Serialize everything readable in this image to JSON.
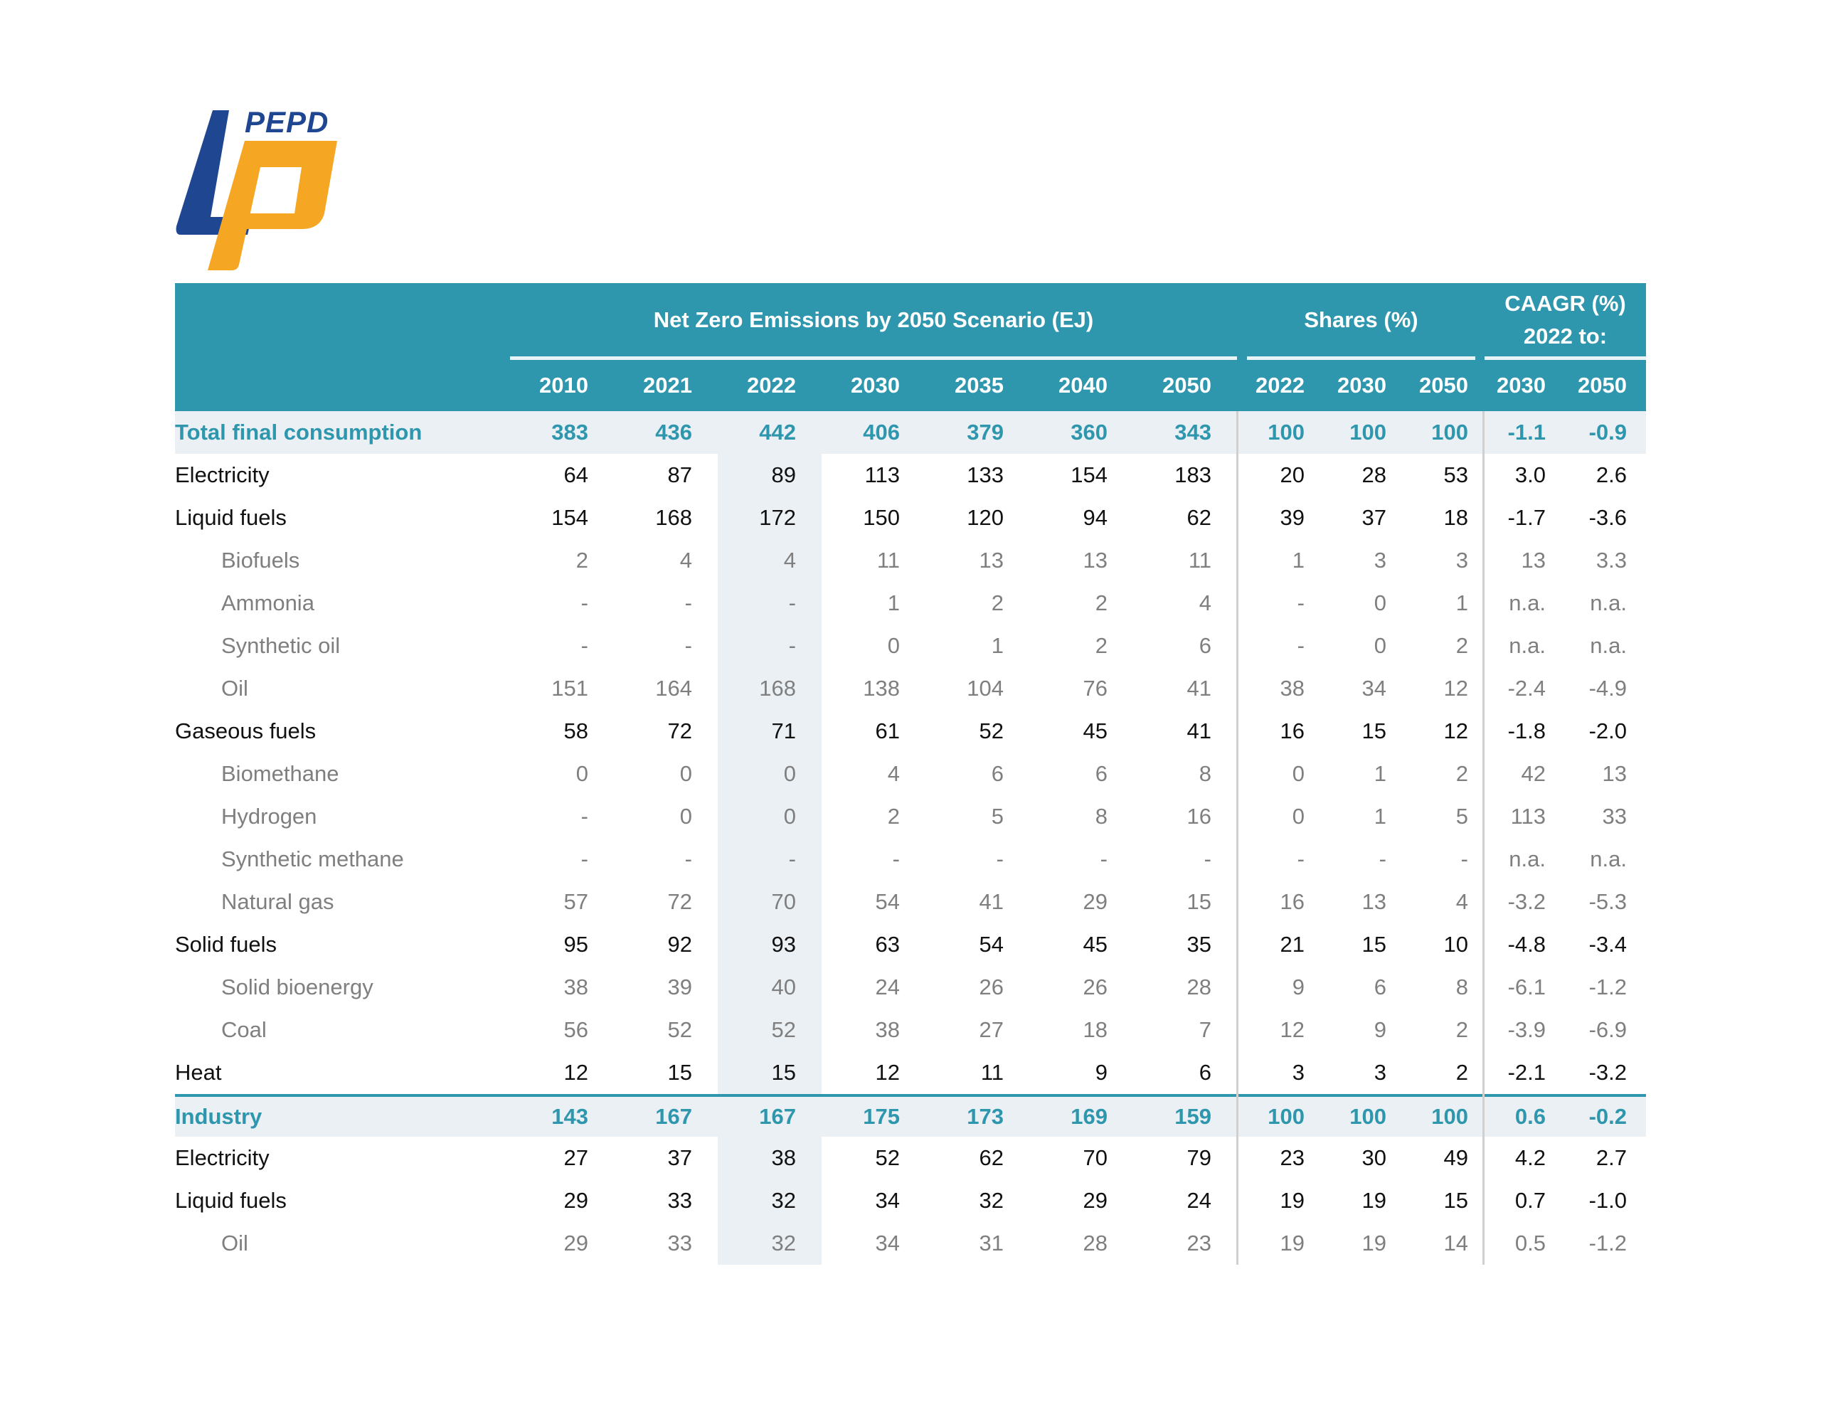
{
  "logo": {
    "text": "PEPD",
    "colors": {
      "blue": "#1f4690",
      "orange": "#f5a623"
    }
  },
  "colors": {
    "header_bg": "#2e96ad",
    "total_bg": "#eaf0f4",
    "subitem_text": "#7f7f7f"
  },
  "header": {
    "group_scenario": "Net Zero Emissions by 2050 Scenario (EJ)",
    "group_shares": "Shares (%)",
    "group_caagr_line1": "CAAGR (%)",
    "group_caagr_line2": "2022 to:",
    "scenario_years": [
      "2010",
      "2021",
      "2022",
      "2030",
      "2035",
      "2040",
      "2050"
    ],
    "share_years": [
      "2022",
      "2030",
      "2050"
    ],
    "caagr_years": [
      "2030",
      "2050"
    ]
  },
  "rows": [
    {
      "label": "Total final consumption",
      "type": "total",
      "values": [
        "383",
        "436",
        "442",
        "406",
        "379",
        "360",
        "343"
      ],
      "shares": [
        "100",
        "100",
        "100"
      ],
      "caagr": [
        "-1.1",
        "-0.9"
      ]
    },
    {
      "label": "Electricity",
      "type": "l0",
      "values": [
        "64",
        "87",
        "89",
        "113",
        "133",
        "154",
        "183"
      ],
      "shares": [
        "20",
        "28",
        "53"
      ],
      "caagr": [
        "3.0",
        "2.6"
      ]
    },
    {
      "label": "Liquid fuels",
      "type": "l0",
      "values": [
        "154",
        "168",
        "172",
        "150",
        "120",
        "94",
        "62"
      ],
      "shares": [
        "39",
        "37",
        "18"
      ],
      "caagr": [
        "-1.7",
        "-3.6"
      ]
    },
    {
      "label": "Biofuels",
      "type": "l1",
      "values": [
        "2",
        "4",
        "4",
        "11",
        "13",
        "13",
        "11"
      ],
      "shares": [
        "1",
        "3",
        "3"
      ],
      "caagr": [
        "13",
        "3.3"
      ]
    },
    {
      "label": "Ammonia",
      "type": "l1",
      "values": [
        "-",
        "-",
        "-",
        "1",
        "2",
        "2",
        "4"
      ],
      "shares": [
        "-",
        "0",
        "1"
      ],
      "caagr": [
        "n.a.",
        "n.a."
      ]
    },
    {
      "label": "Synthetic oil",
      "type": "l1",
      "values": [
        "-",
        "-",
        "-",
        "0",
        "1",
        "2",
        "6"
      ],
      "shares": [
        "-",
        "0",
        "2"
      ],
      "caagr": [
        "n.a.",
        "n.a."
      ]
    },
    {
      "label": "Oil",
      "type": "l1",
      "values": [
        "151",
        "164",
        "168",
        "138",
        "104",
        "76",
        "41"
      ],
      "shares": [
        "38",
        "34",
        "12"
      ],
      "caagr": [
        "-2.4",
        "-4.9"
      ]
    },
    {
      "label": "Gaseous fuels",
      "type": "l0",
      "values": [
        "58",
        "72",
        "71",
        "61",
        "52",
        "45",
        "41"
      ],
      "shares": [
        "16",
        "15",
        "12"
      ],
      "caagr": [
        "-1.8",
        "-2.0"
      ]
    },
    {
      "label": "Biomethane",
      "type": "l1",
      "values": [
        "0",
        "0",
        "0",
        "4",
        "6",
        "6",
        "8"
      ],
      "shares": [
        "0",
        "1",
        "2"
      ],
      "caagr": [
        "42",
        "13"
      ]
    },
    {
      "label": "Hydrogen",
      "type": "l1",
      "values": [
        "-",
        "0",
        "0",
        "2",
        "5",
        "8",
        "16"
      ],
      "shares": [
        "0",
        "1",
        "5"
      ],
      "caagr": [
        "113",
        "33"
      ]
    },
    {
      "label": "Synthetic methane",
      "type": "l1",
      "values": [
        "-",
        "-",
        "-",
        "-",
        "-",
        "-",
        "-"
      ],
      "shares": [
        "-",
        "-",
        "-"
      ],
      "caagr": [
        "n.a.",
        "n.a."
      ]
    },
    {
      "label": "Natural gas",
      "type": "l1",
      "values": [
        "57",
        "72",
        "70",
        "54",
        "41",
        "29",
        "15"
      ],
      "shares": [
        "16",
        "13",
        "4"
      ],
      "caagr": [
        "-3.2",
        "-5.3"
      ]
    },
    {
      "label": "Solid fuels",
      "type": "l0",
      "values": [
        "95",
        "92",
        "93",
        "63",
        "54",
        "45",
        "35"
      ],
      "shares": [
        "21",
        "15",
        "10"
      ],
      "caagr": [
        "-4.8",
        "-3.4"
      ]
    },
    {
      "label": "Solid bioenergy",
      "type": "l1",
      "values": [
        "38",
        "39",
        "40",
        "24",
        "26",
        "26",
        "28"
      ],
      "shares": [
        "9",
        "6",
        "8"
      ],
      "caagr": [
        "-6.1",
        "-1.2"
      ]
    },
    {
      "label": "Coal",
      "type": "l1",
      "values": [
        "56",
        "52",
        "52",
        "38",
        "27",
        "18",
        "7"
      ],
      "shares": [
        "12",
        "9",
        "2"
      ],
      "caagr": [
        "-3.9",
        "-6.9"
      ]
    },
    {
      "label": "Heat",
      "type": "l0",
      "values": [
        "12",
        "15",
        "15",
        "12",
        "11",
        "9",
        "6"
      ],
      "shares": [
        "3",
        "3",
        "2"
      ],
      "caagr": [
        "-2.1",
        "-3.2"
      ]
    },
    {
      "label": "Industry",
      "type": "total",
      "values": [
        "143",
        "167",
        "167",
        "175",
        "173",
        "169",
        "159"
      ],
      "shares": [
        "100",
        "100",
        "100"
      ],
      "caagr": [
        "0.6",
        "-0.2"
      ]
    },
    {
      "label": "Electricity",
      "type": "l0",
      "values": [
        "27",
        "37",
        "38",
        "52",
        "62",
        "70",
        "79"
      ],
      "shares": [
        "23",
        "30",
        "49"
      ],
      "caagr": [
        "4.2",
        "2.7"
      ]
    },
    {
      "label": "Liquid fuels",
      "type": "l0",
      "values": [
        "29",
        "33",
        "32",
        "34",
        "32",
        "29",
        "24"
      ],
      "shares": [
        "19",
        "19",
        "15"
      ],
      "caagr": [
        "0.7",
        "-1.0"
      ]
    },
    {
      "label": "Oil",
      "type": "l1",
      "values": [
        "29",
        "33",
        "32",
        "34",
        "31",
        "28",
        "23"
      ],
      "shares": [
        "19",
        "19",
        "14"
      ],
      "caagr": [
        "0.5",
        "-1.2"
      ]
    }
  ]
}
